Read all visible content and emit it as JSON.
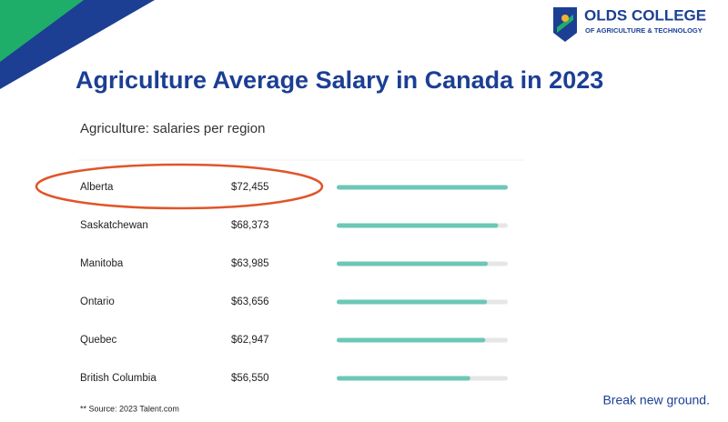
{
  "header": {
    "logo_name": "OLDS COLLEGE",
    "logo_tagline": "OF AGRICULTURE & TECHNOLOGY"
  },
  "chart_data": {
    "type": "hbar",
    "title": "Agriculture Average Salary in Canada in 2023",
    "subtitle": "Agriculture: salaries per region",
    "categories": [
      "Alberta",
      "Saskatchewan",
      "Manitoba",
      "Ontario",
      "Quebec",
      "British Columbia"
    ],
    "values": [
      72455,
      68373,
      63985,
      63656,
      62947,
      56550
    ],
    "value_labels": [
      "$72,455",
      "$68,373",
      "$63,985",
      "$63,656",
      "$62,947",
      "$56,550"
    ],
    "xlim": [
      0,
      72455
    ],
    "color": "#6cc7b6",
    "note": "** Source: 2023 Talent.com"
  },
  "footer": {
    "tagline": "Break new ground."
  }
}
